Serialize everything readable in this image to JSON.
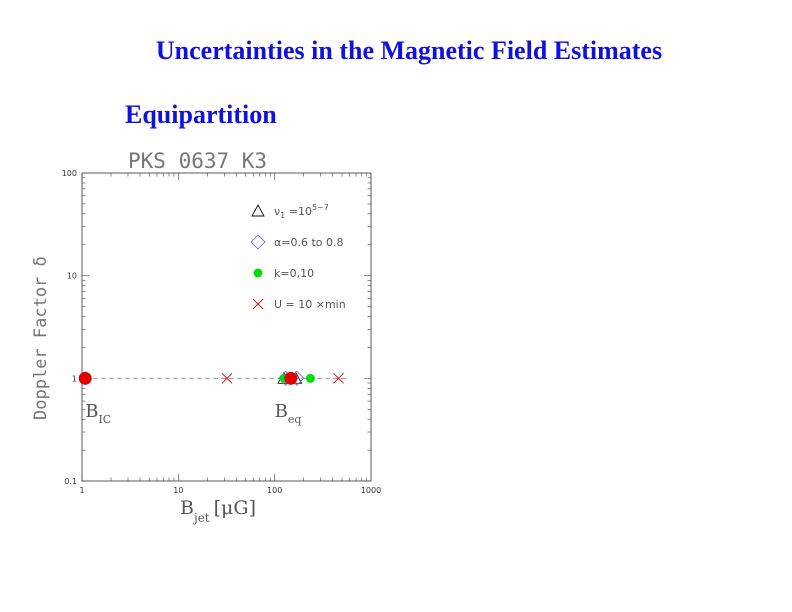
{
  "slide": {
    "title": "Uncertainties in the Magnetic Field Estimates",
    "subtitle": "Equipartition"
  },
  "colors": {
    "title": "#1010e0",
    "triangle": "#111111",
    "diamond": "#7070e0",
    "green": "#00dd00",
    "red": "#e00000"
  },
  "chart_data": {
    "type": "scatter",
    "title": "PKS 0637 K3",
    "xlabel": "B",
    "xlabel_sub": "jet",
    "xlabel_unit": "[μG]",
    "ylabel": "Doppler Factor δ",
    "xscale": "log",
    "yscale": "log",
    "xlim": [
      1,
      1000
    ],
    "ylim": [
      0.1,
      100
    ],
    "x_ticks": [
      "1",
      "10",
      "100",
      "1000"
    ],
    "y_ticks": [
      "100",
      "10",
      "1",
      "0.1"
    ],
    "legend_position": "top-right",
    "legend": [
      {
        "marker": "triangle",
        "label": "ν",
        "label_sub": "1",
        "label_rest": " =10",
        "label_sup": "5−7"
      },
      {
        "marker": "diamond",
        "label": "α=0.6 to 0.8"
      },
      {
        "marker": "green-dot",
        "label": "k=0,10"
      },
      {
        "marker": "red-x",
        "label": "U = 10 ×min"
      }
    ],
    "reference_line": {
      "y": 1,
      "style": "dashed"
    },
    "series": [
      {
        "marker": "triangle",
        "points": [
          {
            "x": 125,
            "y": 1
          },
          {
            "x": 165,
            "y": 1
          }
        ]
      },
      {
        "marker": "diamond",
        "points": [
          {
            "x": 130,
            "y": 1
          },
          {
            "x": 170,
            "y": 1
          }
        ]
      },
      {
        "marker": "green-dot",
        "points": [
          {
            "x": 125,
            "y": 1
          },
          {
            "x": 235,
            "y": 1
          }
        ]
      },
      {
        "marker": "red-x",
        "points": [
          {
            "x": 32,
            "y": 1
          },
          {
            "x": 460,
            "y": 1
          }
        ]
      },
      {
        "marker": "red-dot-large",
        "points": [
          {
            "x": 1.08,
            "y": 1
          },
          {
            "x": 147,
            "y": 1
          }
        ]
      }
    ],
    "annotations": [
      {
        "text": "B",
        "sub": "IC",
        "x": 1.08,
        "y": 0.42
      },
      {
        "text": "B",
        "sub": "eq",
        "x": 100,
        "y": 0.42
      }
    ]
  }
}
